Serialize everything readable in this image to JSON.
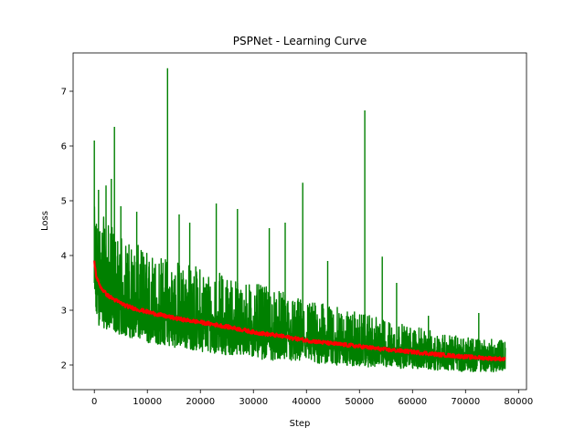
{
  "chart_data": {
    "type": "line",
    "title": "PSPNet - Learning Curve",
    "xlabel": "Step",
    "ylabel": "Loss",
    "xlim": [
      -4000,
      81500
    ],
    "ylim": [
      1.55,
      7.7
    ],
    "xticks": [
      0,
      10000,
      20000,
      30000,
      40000,
      50000,
      60000,
      70000,
      80000
    ],
    "xtick_labels": [
      "0",
      "10000",
      "20000",
      "30000",
      "40000",
      "50000",
      "60000",
      "70000",
      "80000"
    ],
    "yticks": [
      2,
      3,
      4,
      5,
      6,
      7
    ],
    "ytick_labels": [
      "2",
      "3",
      "4",
      "5",
      "6",
      "7"
    ],
    "grid": false,
    "legend": "none",
    "series": [
      {
        "color": "#008000",
        "style": "raw-noisy",
        "x_range": [
          0,
          77500
        ],
        "baseline_points": [
          [
            0,
            3.5
          ],
          [
            2000,
            3.05
          ],
          [
            5000,
            2.95
          ],
          [
            10000,
            2.85
          ],
          [
            20000,
            2.72
          ],
          [
            30000,
            2.58
          ],
          [
            40000,
            2.45
          ],
          [
            50000,
            2.33
          ],
          [
            60000,
            2.24
          ],
          [
            70000,
            2.16
          ],
          [
            77500,
            2.13
          ]
        ],
        "band_low": [
          [
            0,
            2.75
          ],
          [
            5000,
            2.55
          ],
          [
            10000,
            2.4
          ],
          [
            20000,
            2.25
          ],
          [
            30000,
            2.12
          ],
          [
            40000,
            2.02
          ],
          [
            50000,
            1.97
          ],
          [
            60000,
            1.93
          ],
          [
            70000,
            1.88
          ],
          [
            77500,
            1.87
          ]
        ],
        "band_high": [
          [
            0,
            4.9
          ],
          [
            5000,
            4.35
          ],
          [
            10000,
            4.1
          ],
          [
            20000,
            3.8
          ],
          [
            30000,
            3.5
          ],
          [
            40000,
            3.2
          ],
          [
            50000,
            2.95
          ],
          [
            60000,
            2.7
          ],
          [
            70000,
            2.5
          ],
          [
            77500,
            2.45
          ]
        ],
        "spikes": [
          [
            0,
            6.1
          ],
          [
            800,
            5.2
          ],
          [
            2200,
            5.28
          ],
          [
            3200,
            5.4
          ],
          [
            3800,
            6.35
          ],
          [
            5000,
            4.9
          ],
          [
            8000,
            4.8
          ],
          [
            13800,
            7.42
          ],
          [
            16000,
            4.75
          ],
          [
            18000,
            4.6
          ],
          [
            23000,
            4.95
          ],
          [
            27000,
            4.85
          ],
          [
            33000,
            4.5
          ],
          [
            36000,
            4.6
          ],
          [
            39300,
            5.33
          ],
          [
            44000,
            3.9
          ],
          [
            51000,
            6.65
          ],
          [
            54300,
            3.98
          ],
          [
            57000,
            3.5
          ],
          [
            63000,
            2.9
          ],
          [
            72500,
            2.95
          ]
        ]
      },
      {
        "color": "#ff0000",
        "style": "smoothed",
        "points": [
          [
            0,
            3.9
          ],
          [
            300,
            3.65
          ],
          [
            800,
            3.5
          ],
          [
            1500,
            3.38
          ],
          [
            2500,
            3.27
          ],
          [
            4000,
            3.18
          ],
          [
            6000,
            3.08
          ],
          [
            8000,
            3.02
          ],
          [
            10000,
            2.97
          ],
          [
            13000,
            2.9
          ],
          [
            16000,
            2.84
          ],
          [
            20000,
            2.78
          ],
          [
            25000,
            2.7
          ],
          [
            30000,
            2.6
          ],
          [
            35000,
            2.53
          ],
          [
            40000,
            2.45
          ],
          [
            45000,
            2.39
          ],
          [
            50000,
            2.34
          ],
          [
            55000,
            2.28
          ],
          [
            60000,
            2.24
          ],
          [
            65000,
            2.19
          ],
          [
            70000,
            2.15
          ],
          [
            75000,
            2.12
          ],
          [
            77500,
            2.11
          ]
        ]
      }
    ]
  }
}
